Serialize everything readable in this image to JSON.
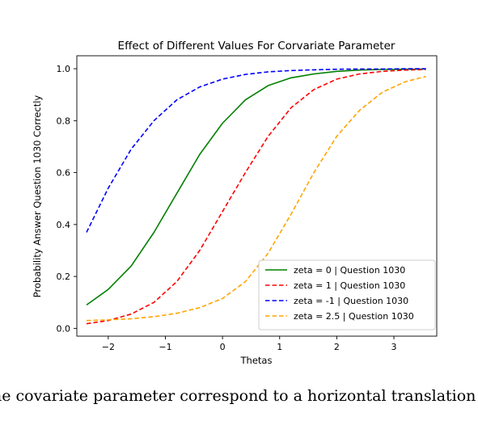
{
  "chart_data": {
    "type": "line",
    "title": "Effect of Different Values For Corvariate Parameter",
    "xlabel": "Thetas",
    "ylabel": "Probability Answer Question 1030 Correctly",
    "xlim": [
      -2.55,
      3.75
    ],
    "ylim": [
      -0.03,
      1.05
    ],
    "xticks": [
      -2,
      -1,
      0,
      1,
      2,
      3
    ],
    "xtick_labels": [
      "−2",
      "−1",
      "0",
      "1",
      "2",
      "3"
    ],
    "yticks": [
      0.0,
      0.2,
      0.4,
      0.6,
      0.8,
      1.0
    ],
    "ytick_labels": [
      "0.0",
      "0.2",
      "0.4",
      "0.6",
      "0.8",
      "1.0"
    ],
    "grid": false,
    "legend_position": "lower-right",
    "series": [
      {
        "name": "zeta = 0 | Question 1030",
        "color": "#008000",
        "linestyle": "solid",
        "x": [
          -2.38,
          -2.0,
          -1.6,
          -1.2,
          -0.8,
          -0.4,
          0.0,
          0.4,
          0.8,
          1.2,
          1.6,
          2.0,
          2.4,
          2.8,
          3.2,
          3.56
        ],
        "y": [
          0.09,
          0.15,
          0.24,
          0.37,
          0.52,
          0.67,
          0.79,
          0.88,
          0.935,
          0.965,
          0.98,
          0.99,
          0.995,
          0.997,
          0.998,
          0.999
        ]
      },
      {
        "name": "zeta = 1 | Question 1030",
        "color": "#ff0000",
        "linestyle": "dashed",
        "x": [
          -2.38,
          -2.0,
          -1.6,
          -1.2,
          -0.8,
          -0.4,
          0.0,
          0.4,
          0.8,
          1.2,
          1.6,
          2.0,
          2.4,
          2.8,
          3.2,
          3.56
        ],
        "y": [
          0.018,
          0.03,
          0.055,
          0.1,
          0.18,
          0.3,
          0.45,
          0.6,
          0.74,
          0.85,
          0.92,
          0.96,
          0.98,
          0.99,
          0.995,
          0.997
        ]
      },
      {
        "name": "zeta = -1 | Question 1030",
        "color": "#0000ff",
        "linestyle": "dashed",
        "x": [
          -2.38,
          -2.0,
          -1.6,
          -1.2,
          -0.8,
          -0.4,
          0.0,
          0.4,
          0.8,
          1.2,
          1.6,
          2.0,
          2.4,
          2.8,
          3.2,
          3.56
        ],
        "y": [
          0.37,
          0.54,
          0.69,
          0.8,
          0.88,
          0.93,
          0.96,
          0.978,
          0.988,
          0.993,
          0.996,
          0.998,
          0.999,
          0.999,
          1.0,
          1.0
        ]
      },
      {
        "name": "zeta = 2.5 | Question 1030",
        "color": "#ffa500",
        "linestyle": "dashed",
        "x": [
          -2.38,
          -2.0,
          -1.6,
          -1.2,
          -0.8,
          -0.4,
          0.0,
          0.4,
          0.8,
          1.2,
          1.6,
          2.0,
          2.4,
          2.8,
          3.2,
          3.56
        ],
        "y": [
          0.03,
          0.033,
          0.037,
          0.045,
          0.058,
          0.08,
          0.115,
          0.18,
          0.29,
          0.44,
          0.6,
          0.74,
          0.84,
          0.91,
          0.95,
          0.97
        ]
      }
    ]
  },
  "caption": {
    "line1": "he covariate parameter correspond to a horizontal translation of"
  },
  "colors": {
    "background": "#ffffff",
    "axes": "#000000",
    "legend_border": "#cccccc"
  }
}
